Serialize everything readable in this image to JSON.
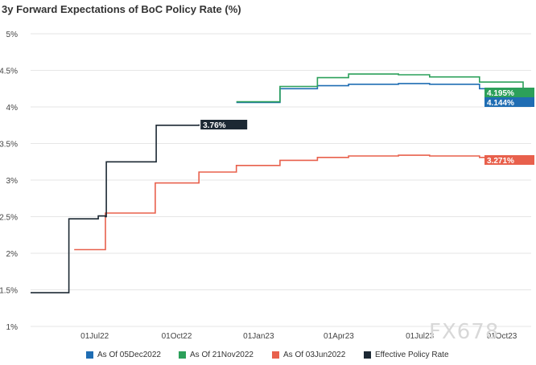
{
  "title": "3y Forward Expectations of BoC Policy Rate (%)",
  "watermark": "FX678",
  "colors": {
    "blue": "#1f6db3",
    "green": "#2ca05a",
    "red": "#e8604c",
    "dark": "#1c2833",
    "grid": "#e6e6e6"
  },
  "legend": [
    {
      "label": "As Of 05Dec2022",
      "color": "#1f6db3"
    },
    {
      "label": "As Of 21Nov2022",
      "color": "#2ca05a"
    },
    {
      "label": "As Of 03Jun2022",
      "color": "#e8604c"
    },
    {
      "label": "Effective Policy Rate",
      "color": "#1c2833"
    }
  ],
  "chart_data": {
    "type": "line",
    "title": "3y Forward Expectations of BoC Policy Rate (%)",
    "ylim": [
      1,
      5
    ],
    "yticks": [
      "1%",
      "1.5%",
      "2%",
      "2.5%",
      "3%",
      "3.5%",
      "4%",
      "4.5%",
      "5%"
    ],
    "xticks": [
      "01Jul22",
      "01Oct22",
      "01Jan23",
      "01Apr23",
      "01Jul23",
      "01Oct23"
    ],
    "grid": "horizontal",
    "legend_position": "bottom",
    "series": [
      {
        "name": "As Of 05Dec2022",
        "color": "#1f6db3",
        "points": [
          [
            "2022-12-07",
            4.06
          ],
          [
            "2023-01-25",
            4.25
          ],
          [
            "2023-03-08",
            4.29
          ],
          [
            "2023-04-12",
            4.31
          ],
          [
            "2023-06-07",
            4.32
          ],
          [
            "2023-07-12",
            4.31
          ],
          [
            "2023-09-06",
            4.25
          ],
          [
            "2023-10-25",
            4.14
          ]
        ],
        "end_label": "4.144%"
      },
      {
        "name": "As Of 21Nov2022",
        "color": "#2ca05a",
        "points": [
          [
            "2022-12-07",
            4.07
          ],
          [
            "2023-01-25",
            4.28
          ],
          [
            "2023-03-08",
            4.4
          ],
          [
            "2023-04-12",
            4.45
          ],
          [
            "2023-06-07",
            4.44
          ],
          [
            "2023-07-12",
            4.41
          ],
          [
            "2023-09-06",
            4.34
          ],
          [
            "2023-10-25",
            4.2
          ]
        ],
        "end_label": "4.195%"
      },
      {
        "name": "As Of 03Jun2022",
        "color": "#e8604c",
        "points": [
          [
            "2022-06-08",
            2.05
          ],
          [
            "2022-07-13",
            2.55
          ],
          [
            "2022-09-07",
            2.96
          ],
          [
            "2022-10-26",
            3.11
          ],
          [
            "2022-12-07",
            3.2
          ],
          [
            "2023-01-25",
            3.27
          ],
          [
            "2023-03-08",
            3.31
          ],
          [
            "2023-04-12",
            3.33
          ],
          [
            "2023-06-07",
            3.34
          ],
          [
            "2023-07-12",
            3.33
          ],
          [
            "2023-09-06",
            3.31
          ],
          [
            "2023-10-25",
            3.27
          ]
        ],
        "end_label": "3.271%"
      },
      {
        "name": "Effective Policy Rate",
        "color": "#1c2833",
        "points": [
          [
            "2022-04-20",
            1.46
          ],
          [
            "2022-06-02",
            1.46
          ],
          [
            "2022-06-02",
            2.47
          ],
          [
            "2022-06-20",
            2.47
          ],
          [
            "2022-07-05",
            2.51
          ],
          [
            "2022-07-08",
            2.51
          ],
          [
            "2022-07-13",
            2.5
          ],
          [
            "2022-07-14",
            3.25
          ],
          [
            "2022-09-07",
            3.25
          ],
          [
            "2022-09-08",
            3.75
          ],
          [
            "2022-10-26",
            3.76
          ]
        ],
        "end_label": "3.76%"
      }
    ]
  }
}
